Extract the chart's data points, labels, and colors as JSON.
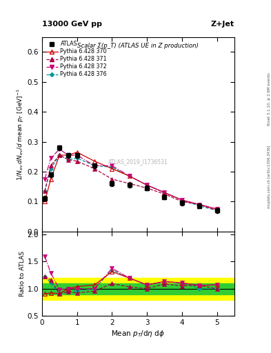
{
  "title_top": "13000 GeV pp",
  "title_right": "Z+Jet",
  "plot_title": "Scalar Σ(p_T) (ATLAS UE in Z production)",
  "watermark": "ATLAS_2019_I1736531",
  "right_label": "Rivet 3.1.10, ≥ 2.6M events",
  "arxiv_label": "[arXiv:1306.3436]",
  "mcplots_label": "mcplots.cern.ch",
  "xlabel": "Mean $p_T$/d$\\eta$ d$\\phi$",
  "ylabel": "$1/N_{ev}\\,dN_{ev}/d$ mean $p_T$ [GeV]$^{-1}$",
  "ylabel_ratio": "Ratio to ATLAS",
  "xlim": [
    0,
    5.5
  ],
  "ylim_main": [
    0,
    0.65
  ],
  "ylim_ratio": [
    0.5,
    2.05
  ],
  "yticks_main": [
    0.0,
    0.1,
    0.2,
    0.3,
    0.4,
    0.5,
    0.6
  ],
  "yticks_ratio": [
    0.5,
    1.0,
    1.5,
    2.0
  ],
  "xticks": [
    0,
    1,
    2,
    3,
    4,
    5
  ],
  "atlas_x": [
    0.08,
    0.25,
    0.5,
    0.75,
    1.0,
    1.5,
    2.0,
    2.5,
    3.0,
    3.5,
    4.0,
    4.5,
    5.0
  ],
  "atlas_y": [
    0.11,
    0.19,
    0.28,
    0.255,
    0.255,
    0.22,
    0.16,
    0.155,
    0.145,
    0.115,
    0.095,
    0.085,
    0.07
  ],
  "atlas_yerr": [
    0.008,
    0.008,
    0.008,
    0.008,
    0.008,
    0.008,
    0.008,
    0.008,
    0.008,
    0.008,
    0.008,
    0.008,
    0.008
  ],
  "p370_x": [
    0.08,
    0.25,
    0.5,
    0.75,
    1.0,
    1.5,
    2.0,
    2.5,
    3.0,
    3.5,
    4.0,
    4.5,
    5.0
  ],
  "p370_y": [
    0.1,
    0.175,
    0.255,
    0.255,
    0.265,
    0.235,
    0.21,
    0.185,
    0.155,
    0.13,
    0.105,
    0.09,
    0.075
  ],
  "p371_x": [
    0.08,
    0.25,
    0.5,
    0.75,
    1.0,
    1.5,
    2.0,
    2.5,
    3.0,
    3.5,
    4.0,
    4.5,
    5.0
  ],
  "p371_y": [
    0.135,
    0.22,
    0.255,
    0.24,
    0.235,
    0.21,
    0.175,
    0.16,
    0.145,
    0.125,
    0.1,
    0.09,
    0.07
  ],
  "p372_x": [
    0.08,
    0.25,
    0.5,
    0.75,
    1.0,
    1.5,
    2.0,
    2.5,
    3.0,
    3.5,
    4.0,
    4.5,
    5.0
  ],
  "p372_y": [
    0.175,
    0.245,
    0.275,
    0.255,
    0.255,
    0.22,
    0.22,
    0.185,
    0.155,
    0.13,
    0.105,
    0.09,
    0.075
  ],
  "p376_x": [
    0.08,
    0.25,
    0.5,
    0.75,
    1.0,
    1.5,
    2.0,
    2.5,
    3.0,
    3.5,
    4.0,
    4.5,
    5.0
  ],
  "p376_y": [
    0.135,
    0.21,
    0.255,
    0.24,
    0.245,
    0.22,
    0.215,
    0.185,
    0.155,
    0.13,
    0.105,
    0.085,
    0.07
  ],
  "color_370": "#cc0000",
  "color_371": "#aa0044",
  "color_372": "#cc0077",
  "color_376": "#009999",
  "atlas_color": "#000000",
  "legend_loc": "upper left"
}
